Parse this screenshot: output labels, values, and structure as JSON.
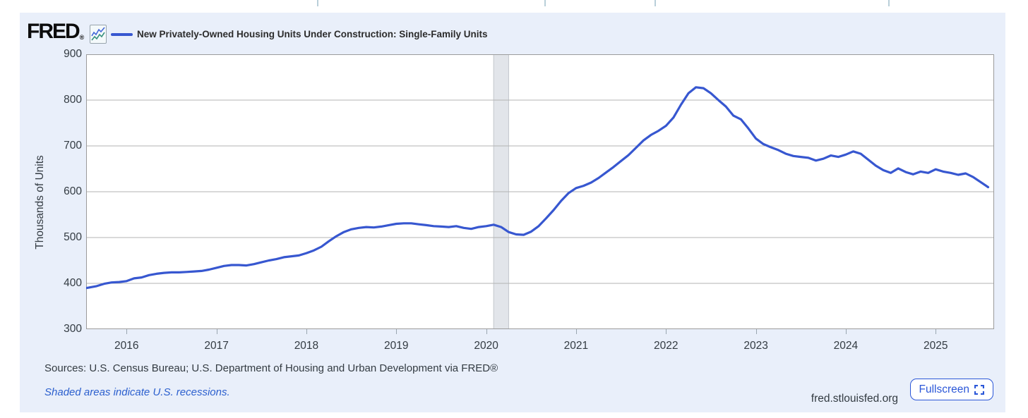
{
  "header": {
    "logo_text": "FRED",
    "registered_mark": "®",
    "legend_label": "New Privately-Owned Housing Units Under Construction: Single-Family Units"
  },
  "chart_data": {
    "type": "line",
    "title": "New Privately-Owned Housing Units Under Construction: Single-Family Units",
    "ylabel": "Thousands of Units",
    "xlabel": "",
    "ylim": [
      300,
      900
    ],
    "yticks": [
      300,
      400,
      500,
      600,
      700,
      800,
      900
    ],
    "xlim": [
      2015.55,
      2025.65
    ],
    "xticks": [
      2016,
      2017,
      2018,
      2019,
      2020,
      2021,
      2022,
      2023,
      2024,
      2025
    ],
    "grid": true,
    "legend_position": "top-left",
    "line_color": "#3757d0",
    "recession_band_color": "#e2e5ea",
    "recession_bands": [
      {
        "from": 2020.083,
        "to": 2020.25
      }
    ],
    "series": [
      {
        "name": "New Privately-Owned Housing Units Under Construction: Single-Family Units",
        "units": "Thousands of Units",
        "frequency": "monthly",
        "start": "2015-07",
        "end": "2025-08",
        "values": [
          388,
          391,
          394,
          399,
          402,
          403,
          405,
          411,
          413,
          418,
          421,
          423,
          424,
          424,
          425,
          426,
          427,
          430,
          434,
          438,
          440,
          440,
          439,
          442,
          446,
          450,
          453,
          457,
          459,
          461,
          466,
          472,
          480,
          492,
          503,
          512,
          518,
          521,
          523,
          522,
          524,
          527,
          530,
          531,
          531,
          529,
          527,
          525,
          524,
          523,
          525,
          521,
          519,
          523,
          525,
          528,
          523,
          512,
          507,
          506,
          513,
          525,
          542,
          560,
          580,
          597,
          608,
          613,
          620,
          630,
          642,
          654,
          667,
          680,
          696,
          712,
          724,
          733,
          744,
          762,
          790,
          815,
          828,
          826,
          815,
          800,
          786,
          766,
          758,
          738,
          716,
          704,
          697,
          691,
          683,
          678,
          676,
          674,
          668,
          672,
          679,
          676,
          681,
          688,
          683,
          670,
          657,
          647,
          641,
          651,
          643,
          638,
          644,
          641,
          649,
          644,
          641,
          637,
          640,
          632,
          621,
          610
        ]
      }
    ]
  },
  "footer": {
    "sources": "Sources: U.S. Census Bureau; U.S. Department of Housing and Urban Development via FRED®",
    "recessions_note": "Shaded areas indicate U.S. recessions.",
    "site": "fred.stlouisfed.org",
    "fullscreen_label": "Fullscreen"
  }
}
